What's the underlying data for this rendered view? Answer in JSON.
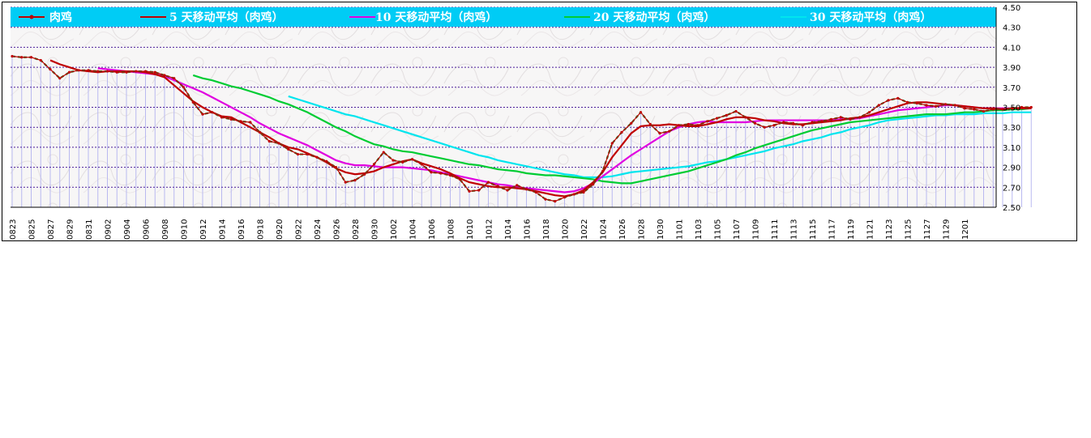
{
  "chart_data": {
    "type": "line",
    "title": "",
    "xlabel": "",
    "ylabel": "",
    "ylim": [
      2.5,
      4.5
    ],
    "yticks": [
      "4.50",
      "4.30",
      "4.10",
      "3.90",
      "3.70",
      "3.50",
      "3.30",
      "3.10",
      "2.90",
      "2.70",
      "2.50"
    ],
    "xtick_labels": [
      "0823",
      "0825",
      "0827",
      "0829",
      "0831",
      "0902",
      "0904",
      "0906",
      "0908",
      "0910",
      "0912",
      "0914",
      "0916",
      "0918",
      "0920",
      "0922",
      "0924",
      "0926",
      "0928",
      "0930",
      "1002",
      "1004",
      "1006",
      "1008",
      "1010",
      "1012",
      "1014",
      "1016",
      "1018",
      "1020",
      "1022",
      "1024",
      "1026",
      "1028",
      "1030",
      "1101",
      "1103",
      "1105",
      "1107",
      "1109",
      "1111",
      "1113",
      "1115",
      "1117",
      "1119",
      "1121",
      "1123",
      "1125",
      "1127",
      "1129",
      "1201"
    ],
    "legend": [
      {
        "label": "肉鸡",
        "color": "#c00000",
        "marker": true
      },
      {
        "label": "5  天移动平均（肉鸡）",
        "color": "#c00000"
      },
      {
        "label": "10  天移动平均（肉鸡）",
        "color": "#e000e0"
      },
      {
        "label": "20  天移动平均（肉鸡）",
        "color": "#00cc33"
      },
      {
        "label": "30  天移动平均（肉鸡）",
        "color": "#00e5ee"
      }
    ],
    "series": [
      {
        "name": "肉鸡",
        "color": "#c00000",
        "start": 0,
        "values": [
          4.01,
          4.0,
          4.0,
          3.97,
          3.88,
          3.79,
          3.85,
          3.87,
          3.87,
          3.86,
          3.86,
          3.85,
          3.85,
          3.86,
          3.86,
          3.85,
          3.82,
          3.79,
          3.7,
          3.55,
          3.43,
          3.45,
          3.4,
          3.38,
          3.36,
          3.35,
          3.25,
          3.16,
          3.14,
          3.08,
          3.03,
          3.03,
          3.0,
          2.96,
          2.9,
          2.75,
          2.77,
          2.83,
          2.93,
          3.05,
          2.97,
          2.95,
          2.98,
          2.93,
          2.85,
          2.84,
          2.82,
          2.78,
          2.66,
          2.67,
          2.75,
          2.71,
          2.67,
          2.72,
          2.68,
          2.65,
          2.58,
          2.56,
          2.6,
          2.63,
          2.65,
          2.73,
          2.86,
          3.14,
          3.25,
          3.34,
          3.45,
          3.33,
          3.24,
          3.26,
          3.32,
          3.33,
          3.32,
          3.36,
          3.39,
          3.42,
          3.46,
          3.4,
          3.34,
          3.3,
          3.32,
          3.35,
          3.34,
          3.32,
          3.35,
          3.36,
          3.38,
          3.4,
          3.38,
          3.4,
          3.45,
          3.52,
          3.57,
          3.59,
          3.55,
          3.54,
          3.52,
          3.51,
          3.53,
          3.52,
          3.49,
          3.48,
          3.46,
          3.48,
          3.48,
          3.49,
          3.5,
          3.5
        ]
      },
      {
        "name": "5  天移动平均（肉鸡）",
        "color": "#c00000",
        "start": 4,
        "values": [
          3.97,
          3.93,
          3.9,
          3.87,
          3.86,
          3.85,
          3.86,
          3.86,
          3.86,
          3.86,
          3.85,
          3.83,
          3.8,
          3.72,
          3.64,
          3.56,
          3.5,
          3.45,
          3.41,
          3.4,
          3.35,
          3.3,
          3.25,
          3.2,
          3.14,
          3.1,
          3.08,
          3.04,
          3.0,
          2.95,
          2.89,
          2.85,
          2.83,
          2.84,
          2.86,
          2.9,
          2.93,
          2.96,
          2.98,
          2.94,
          2.91,
          2.88,
          2.84,
          2.79,
          2.75,
          2.73,
          2.71,
          2.7,
          2.7,
          2.69,
          2.68,
          2.66,
          2.64,
          2.62,
          2.61,
          2.63,
          2.67,
          2.75,
          2.85,
          3.0,
          3.12,
          3.24,
          3.31,
          3.32,
          3.32,
          3.33,
          3.32,
          3.31,
          3.31,
          3.33,
          3.35,
          3.38,
          3.4,
          3.4,
          3.39,
          3.37,
          3.36,
          3.34,
          3.33,
          3.33,
          3.34,
          3.35,
          3.36,
          3.37,
          3.39,
          3.4,
          3.42,
          3.45,
          3.48,
          3.51,
          3.54,
          3.55,
          3.55,
          3.54,
          3.53,
          3.52,
          3.51,
          3.5,
          3.49,
          3.49,
          3.48,
          3.49,
          3.49,
          3.49
        ]
      },
      {
        "name": "10  天移动平均（肉鸡）",
        "color": "#e000e0",
        "start": 9,
        "values": [
          3.89,
          3.88,
          3.87,
          3.86,
          3.85,
          3.84,
          3.83,
          3.81,
          3.77,
          3.73,
          3.69,
          3.65,
          3.6,
          3.55,
          3.5,
          3.45,
          3.4,
          3.34,
          3.29,
          3.24,
          3.2,
          3.16,
          3.12,
          3.07,
          3.02,
          2.97,
          2.94,
          2.92,
          2.92,
          2.91,
          2.9,
          2.9,
          2.9,
          2.89,
          2.88,
          2.87,
          2.85,
          2.83,
          2.81,
          2.79,
          2.77,
          2.75,
          2.73,
          2.72,
          2.7,
          2.69,
          2.68,
          2.67,
          2.66,
          2.65,
          2.66,
          2.69,
          2.74,
          2.81,
          2.88,
          2.95,
          3.02,
          3.08,
          3.14,
          3.2,
          3.26,
          3.3,
          3.33,
          3.35,
          3.36,
          3.35,
          3.35,
          3.35,
          3.35,
          3.36,
          3.37,
          3.37,
          3.37,
          3.37,
          3.37,
          3.37,
          3.37,
          3.37,
          3.38,
          3.38,
          3.39,
          3.41,
          3.43,
          3.45,
          3.47,
          3.48,
          3.49,
          3.5,
          3.51,
          3.52,
          3.52,
          3.51,
          3.5,
          3.49,
          3.49,
          3.49,
          3.49,
          3.49,
          3.49
        ]
      },
      {
        "name": "20  天移动平均（肉鸡）",
        "color": "#00cc33",
        "start": 19,
        "values": [
          3.82,
          3.79,
          3.77,
          3.74,
          3.71,
          3.69,
          3.66,
          3.63,
          3.6,
          3.56,
          3.53,
          3.49,
          3.45,
          3.4,
          3.35,
          3.3,
          3.26,
          3.21,
          3.17,
          3.13,
          3.11,
          3.08,
          3.06,
          3.05,
          3.03,
          3.01,
          2.99,
          2.97,
          2.95,
          2.93,
          2.92,
          2.9,
          2.88,
          2.87,
          2.86,
          2.84,
          2.83,
          2.82,
          2.82,
          2.81,
          2.8,
          2.79,
          2.78,
          2.76,
          2.75,
          2.74,
          2.74,
          2.76,
          2.78,
          2.8,
          2.82,
          2.84,
          2.86,
          2.89,
          2.92,
          2.95,
          2.98,
          3.02,
          3.05,
          3.09,
          3.12,
          3.15,
          3.18,
          3.21,
          3.24,
          3.27,
          3.29,
          3.31,
          3.33,
          3.35,
          3.36,
          3.37,
          3.38,
          3.39,
          3.4,
          3.41,
          3.42,
          3.43,
          3.43,
          3.43,
          3.44,
          3.45,
          3.45,
          3.46,
          3.47,
          3.47,
          3.48,
          3.48,
          3.49
        ]
      },
      {
        "name": "30  天移动平均（肉鸡）",
        "color": "#00e5ee",
        "start": 29,
        "values": [
          3.61,
          3.58,
          3.55,
          3.52,
          3.49,
          3.46,
          3.43,
          3.41,
          3.38,
          3.35,
          3.32,
          3.29,
          3.26,
          3.23,
          3.2,
          3.17,
          3.14,
          3.11,
          3.08,
          3.05,
          3.02,
          3.0,
          2.97,
          2.95,
          2.93,
          2.91,
          2.89,
          2.87,
          2.85,
          2.83,
          2.82,
          2.8,
          2.8,
          2.8,
          2.81,
          2.83,
          2.85,
          2.86,
          2.87,
          2.88,
          2.89,
          2.9,
          2.91,
          2.93,
          2.95,
          2.96,
          2.98,
          3.0,
          3.02,
          3.04,
          3.06,
          3.09,
          3.11,
          3.13,
          3.16,
          3.18,
          3.2,
          3.23,
          3.25,
          3.28,
          3.3,
          3.32,
          3.35,
          3.37,
          3.38,
          3.39,
          3.4,
          3.41,
          3.42,
          3.42,
          3.43,
          3.43,
          3.43,
          3.44,
          3.44,
          3.44,
          3.45,
          3.45,
          3.45
        ]
      }
    ]
  }
}
